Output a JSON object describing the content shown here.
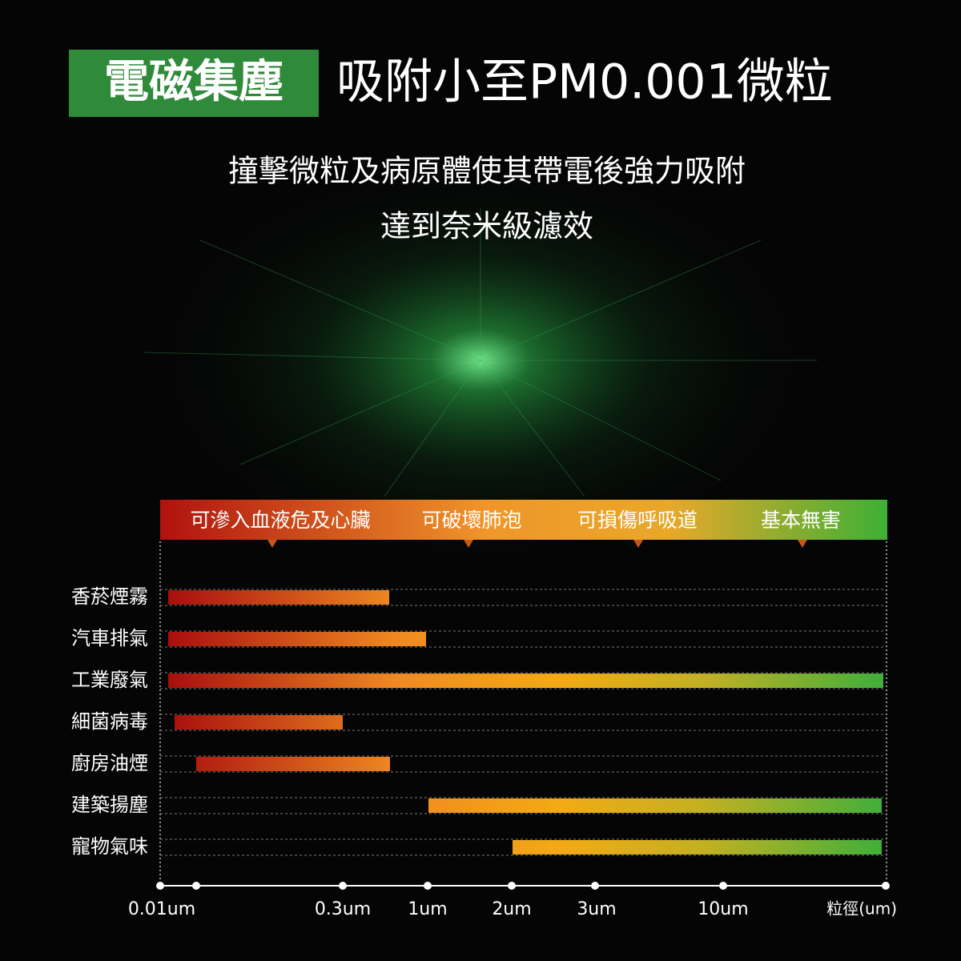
{
  "header": {
    "badge": "電磁集塵",
    "title": "吸附小至PM0.001微粒"
  },
  "subtitle": [
    "撞擊微粒及病原體使其帶電後強力吸附",
    "達到奈米級濾效"
  ],
  "zones": [
    "可滲入血液危及心臟",
    "可破壞肺泡",
    "可損傷呼吸道",
    "基本無害"
  ],
  "rows": [
    "香菸煙霧",
    "汽車排氣",
    "工業廢氣",
    "細菌病毒",
    "廚房油煙",
    "建築揚塵",
    "寵物氣味"
  ],
  "axis": {
    "ticks": [
      "0.01um",
      "0.3um",
      "1um",
      "2um",
      "3um",
      "10um"
    ],
    "unit": "粒徑(um)"
  }
}
